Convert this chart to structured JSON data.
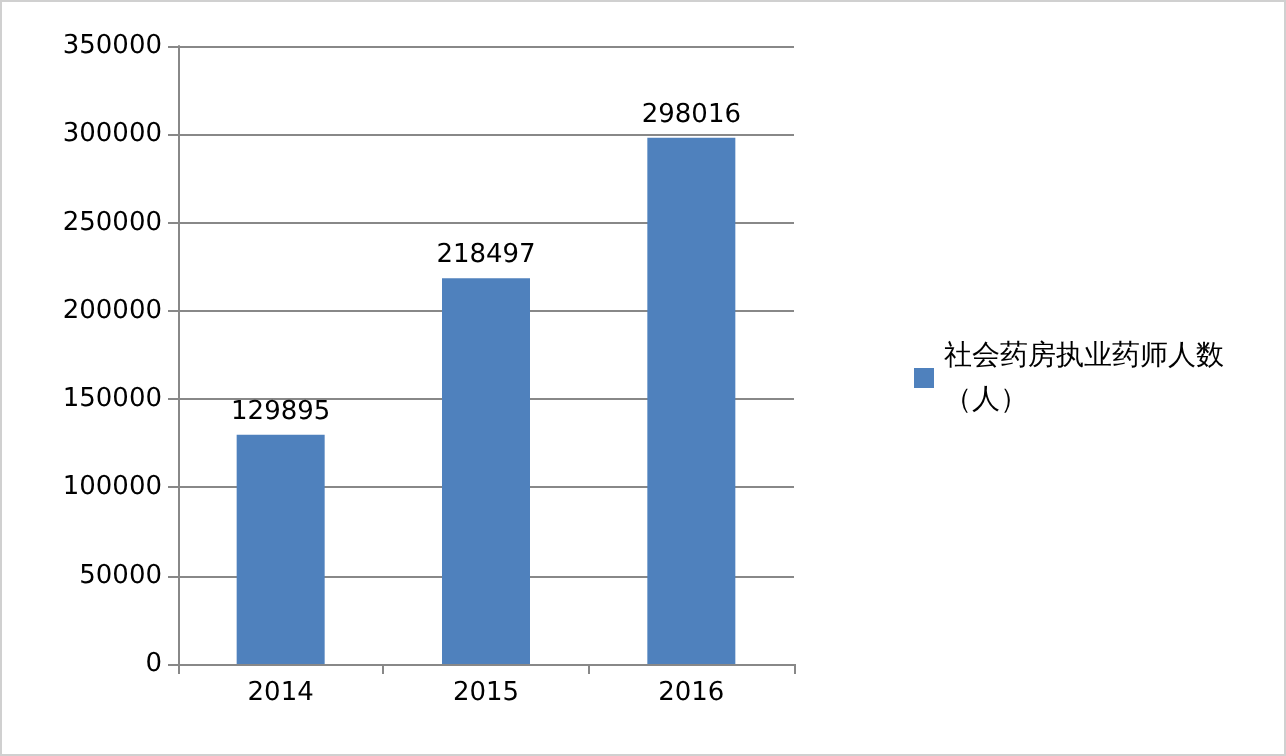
{
  "chart_data": {
    "type": "bar",
    "categories": [
      "2014",
      "2015",
      "2016"
    ],
    "series": [
      {
        "name": "社会药房执业药师人数（人）",
        "color": "#4f81bd",
        "values": [
          129895,
          218497,
          298016
        ]
      }
    ],
    "ylim": [
      0,
      350000
    ],
    "yticks": [
      0,
      50000,
      100000,
      150000,
      200000,
      250000,
      300000,
      350000
    ],
    "grid": "y",
    "legend": "right",
    "data_labels": true
  }
}
